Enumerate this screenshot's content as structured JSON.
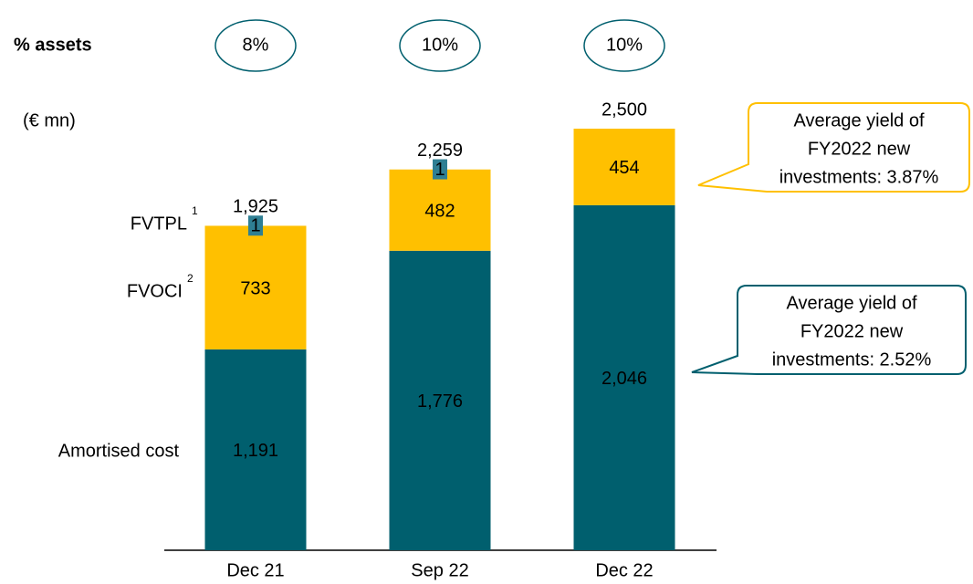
{
  "chart_data": {
    "type": "stacked-bar",
    "unit_label": "(€ mn)",
    "categories": [
      "Dec 21",
      "Sep 22",
      "Dec 22"
    ],
    "series": [
      {
        "name": "Amortised cost",
        "color": "#005f6e",
        "values": [
          1191,
          1776,
          2046
        ],
        "value_labels": [
          "1,191",
          "1,776",
          "2,046"
        ]
      },
      {
        "name": "FVOCI",
        "footnote": "2",
        "color": "#ffc000",
        "values": [
          733,
          482,
          454
        ]
      },
      {
        "name": "FVTPL",
        "footnote": "1",
        "color": "#2f7f93",
        "values": [
          1,
          1,
          null
        ]
      }
    ],
    "totals": {
      "values": [
        1925,
        2259,
        2500
      ],
      "value_labels": [
        "1,925",
        "2,259",
        "2,500"
      ]
    },
    "assets_share": {
      "label": "% assets",
      "values": [
        8,
        10,
        10
      ],
      "value_labels": [
        "8%",
        "10%",
        "10%"
      ]
    },
    "annotations": [
      {
        "lines": [
          "Average yield of",
          "FY2022 new",
          "investments: 3.87%"
        ],
        "color": "#ffc000"
      },
      {
        "lines": [
          "Average yield of",
          "FY2022 new",
          "investments: 2.52%"
        ],
        "color": "#005f6e"
      }
    ]
  }
}
